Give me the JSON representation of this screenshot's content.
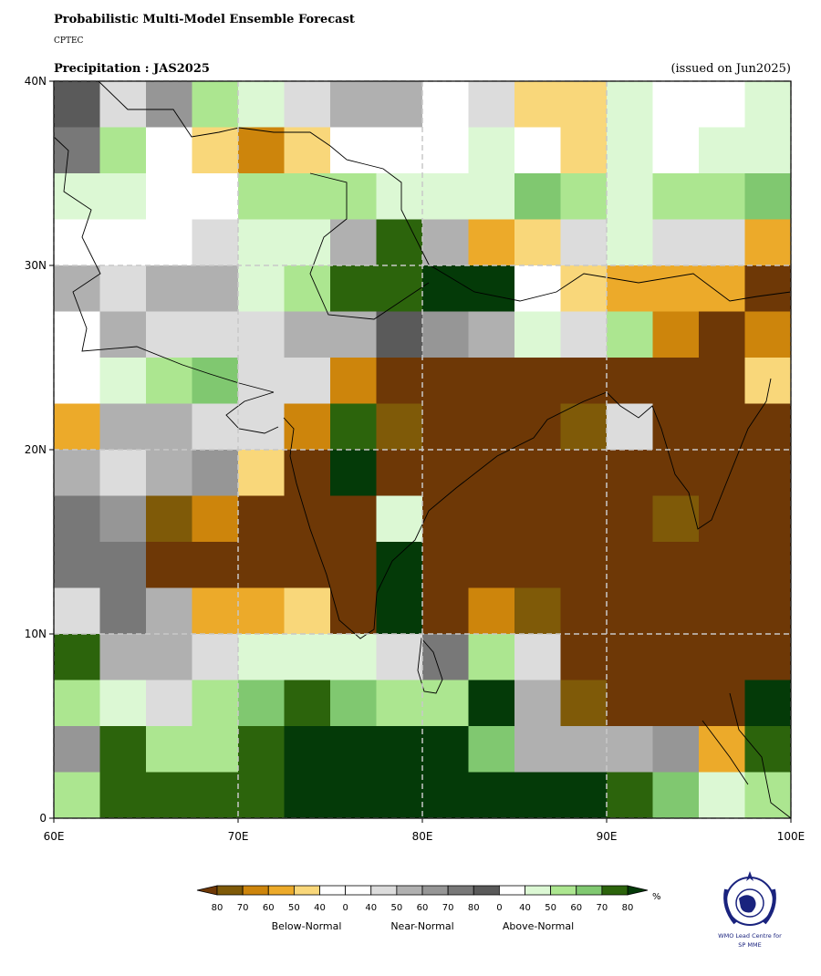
{
  "header": {
    "title": "Probabilistic Multi-Model Ensemble Forecast",
    "org": "CPTEC",
    "subtitle": "Precipitation : JAS2025",
    "issued": "(issued on Jun2025)"
  },
  "map": {
    "xlim": [
      60,
      100
    ],
    "ylim": [
      0,
      40
    ],
    "xticks": [
      {
        "value": 60,
        "label": "60E"
      },
      {
        "value": 70,
        "label": "70E"
      },
      {
        "value": 80,
        "label": "80E"
      },
      {
        "value": 90,
        "label": "90E"
      },
      {
        "value": 100,
        "label": "100E"
      }
    ],
    "yticks": [
      {
        "value": 0,
        "label": "0"
      },
      {
        "value": 10,
        "label": "10N"
      },
      {
        "value": 20,
        "label": "20N"
      },
      {
        "value": 30,
        "label": "30N"
      },
      {
        "value": 40,
        "label": "40N"
      }
    ],
    "grid": true
  },
  "legend": {
    "labels": [
      80,
      70,
      60,
      50,
      40,
      0,
      40,
      50,
      60,
      70,
      80,
      0,
      40,
      50,
      60,
      70,
      80
    ],
    "colors": [
      "#7f5a08",
      "#cd850c",
      "#ecaa2a",
      "#f9d77a",
      "#ffffff",
      "#ffffff",
      "#dcdcdc",
      "#b0b0b0",
      "#969696",
      "#787878",
      "#5a5a5a",
      "#ffffff",
      "#dcf8d4",
      "#ace690",
      "#80c870",
      "#2c640c"
    ],
    "low_color": "#6e3806",
    "high_color": "#043a08",
    "unit": "%",
    "categories": [
      "Below-Normal",
      "Near-Normal",
      "Above-Normal"
    ]
  },
  "logo": {
    "line1": "WMO Lead Centre for",
    "line2": "SP MME"
  }
}
